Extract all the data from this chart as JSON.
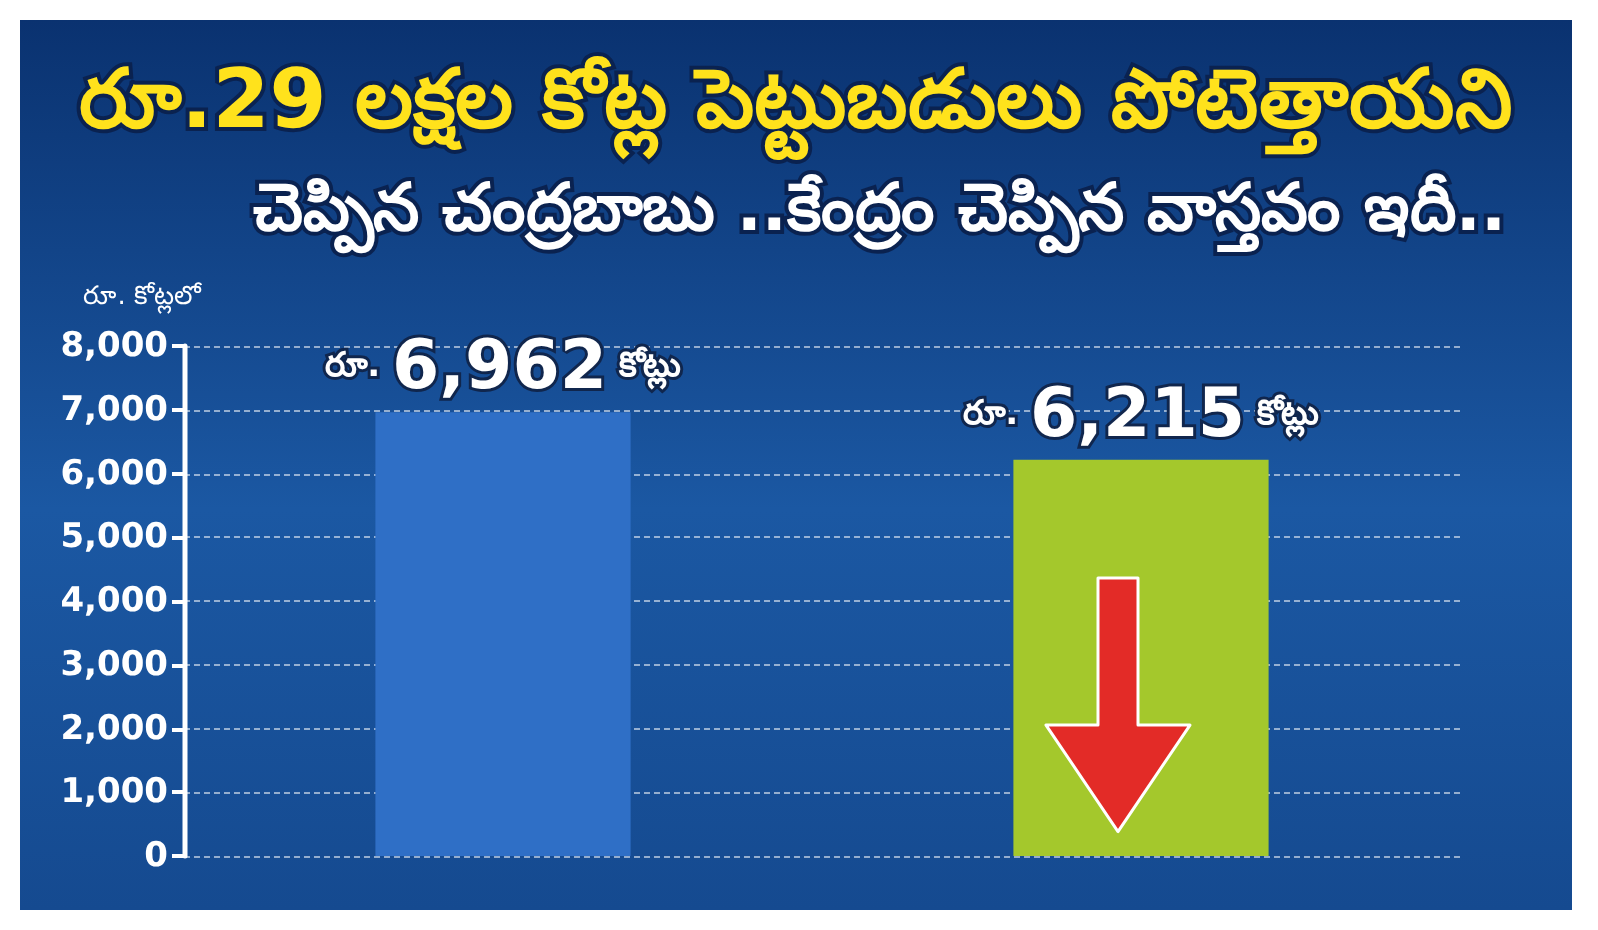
{
  "chart_data": {
    "type": "bar",
    "title": "రూ.29 లక్షల కోట్ల పెట్టుబడులు పోటెత్తాయని",
    "subtitle": "చెప్పిన చంద్రబాబు ..కేంద్రం చెప్పిన వాస్తవం ఇదీ..",
    "ylabel": "రూ. కోట్లలో",
    "categories": [
      null,
      null
    ],
    "values": [
      6962,
      6215
    ],
    "colors": [
      "#2f6fc6",
      "#a4c82c"
    ],
    "value_labels": [
      "రూ. 6,962 కోట్లు",
      "రూ. 6,215 కోట్లు"
    ],
    "ylim": [
      0,
      8000
    ],
    "yticks": [
      {
        "value": 0,
        "label": "0"
      },
      {
        "value": 1000,
        "label": "1,000"
      },
      {
        "value": 2000,
        "label": "2,000"
      },
      {
        "value": 3000,
        "label": "3,000"
      },
      {
        "value": 4000,
        "label": "4,000"
      },
      {
        "value": 5000,
        "label": "5,000"
      },
      {
        "value": 6000,
        "label": "6,000"
      },
      {
        "value": 7000,
        "label": "7,000"
      },
      {
        "value": 8000,
        "label": "8,000"
      }
    ],
    "grid": "y",
    "tick_labels": "y"
  }
}
